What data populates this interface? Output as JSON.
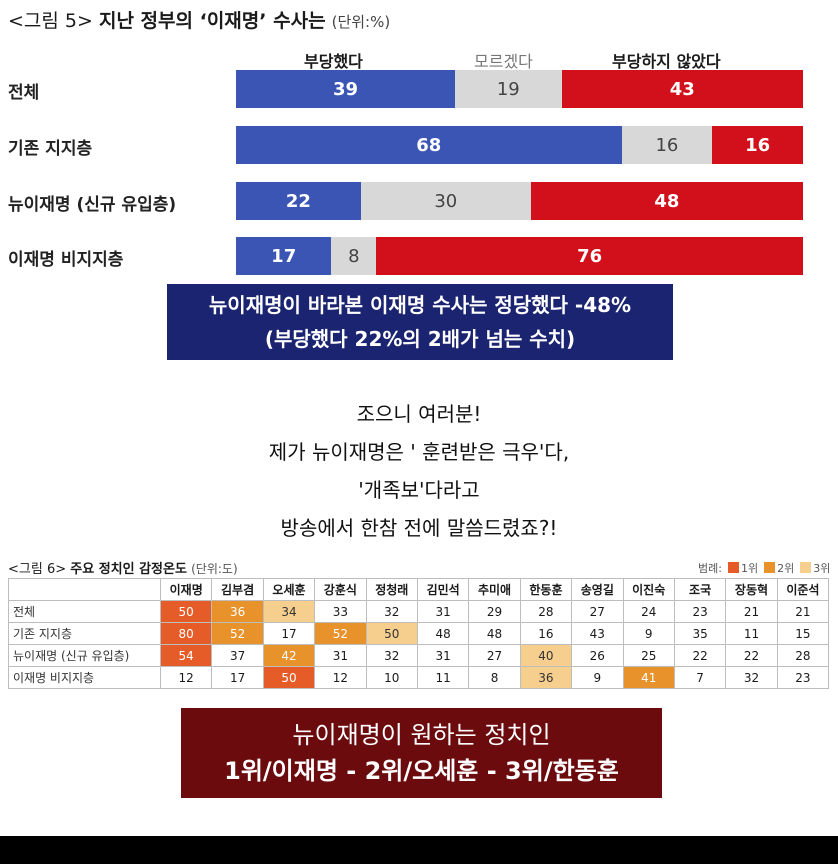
{
  "chart_data": [
    {
      "type": "bar",
      "title_prefix": "<그림 5>",
      "title": "지난 정부의 ‘이재명’ 수사는",
      "unit": "(단위:%)",
      "stacked": true,
      "categories": [
        "전체",
        "기존 지지층",
        "뉴이재명 (신규 유입층)",
        "이재명 비지지층"
      ],
      "series": [
        {
          "name": "부당했다",
          "values": [
            39,
            68,
            22,
            17
          ],
          "color": "#3b55b4"
        },
        {
          "name": "모르겠다",
          "values": [
            19,
            16,
            30,
            8
          ],
          "color": "#d8d8d8"
        },
        {
          "name": "부당하지 않았다",
          "values": [
            43,
            16,
            48,
            76
          ],
          "color": "#d1101c"
        }
      ]
    },
    {
      "type": "table",
      "title_prefix": "<그림 6>",
      "title": "주요 정치인 감정온도",
      "unit": "(단위:도)",
      "legend_label": "범례:",
      "legend": [
        {
          "name": "1위",
          "color": "#e65c28"
        },
        {
          "name": "2위",
          "color": "#e8922b"
        },
        {
          "name": "3위",
          "color": "#f6cf8f"
        }
      ],
      "columns": [
        "이재명",
        "김부겸",
        "오세훈",
        "강훈식",
        "정청래",
        "김민석",
        "추미애",
        "한동훈",
        "송영길",
        "이진숙",
        "조국",
        "장동혁",
        "이준석"
      ],
      "rows": [
        {
          "label": "전체",
          "values": [
            50,
            36,
            34,
            33,
            32,
            31,
            29,
            28,
            27,
            24,
            23,
            21,
            21
          ],
          "ranks": [
            1,
            2,
            3,
            0,
            0,
            0,
            0,
            0,
            0,
            0,
            0,
            0,
            0
          ]
        },
        {
          "label": "기존 지지층",
          "values": [
            80,
            52,
            17,
            52,
            50,
            48,
            48,
            16,
            43,
            9,
            35,
            11,
            15
          ],
          "ranks": [
            1,
            2,
            0,
            2,
            3,
            0,
            0,
            0,
            0,
            0,
            0,
            0,
            0
          ]
        },
        {
          "label": "뉴이재명 (신규 유입층)",
          "values": [
            54,
            37,
            42,
            31,
            32,
            31,
            27,
            40,
            26,
            25,
            22,
            22,
            28
          ],
          "ranks": [
            1,
            0,
            2,
            0,
            0,
            0,
            0,
            3,
            0,
            0,
            0,
            0,
            0
          ]
        },
        {
          "label": "이재명 비지지층",
          "values": [
            12,
            17,
            50,
            12,
            10,
            11,
            8,
            36,
            9,
            41,
            7,
            32,
            23
          ],
          "ranks": [
            0,
            0,
            1,
            0,
            0,
            0,
            0,
            3,
            0,
            2,
            0,
            0,
            0
          ]
        }
      ]
    }
  ],
  "callout1": {
    "line1": "뉴이재명이 바라본 이재명 수사는 정당했다 -48%",
    "line2": "(부당했다 22%의 2배가 넘는 수치)"
  },
  "quote": {
    "line1": "조으니 여러분!",
    "line2": "제가 뉴이재명은 ' 훈련받은 극우'다,",
    "line3": "'개족보'다라고",
    "line4": "방송에서 한참 전에 말씀드렸죠?!"
  },
  "callout2": {
    "line1": "뉴이재명이 원하는 정치인",
    "line2": "1위/이재명 - 2위/오세훈 - 3위/한동훈"
  }
}
